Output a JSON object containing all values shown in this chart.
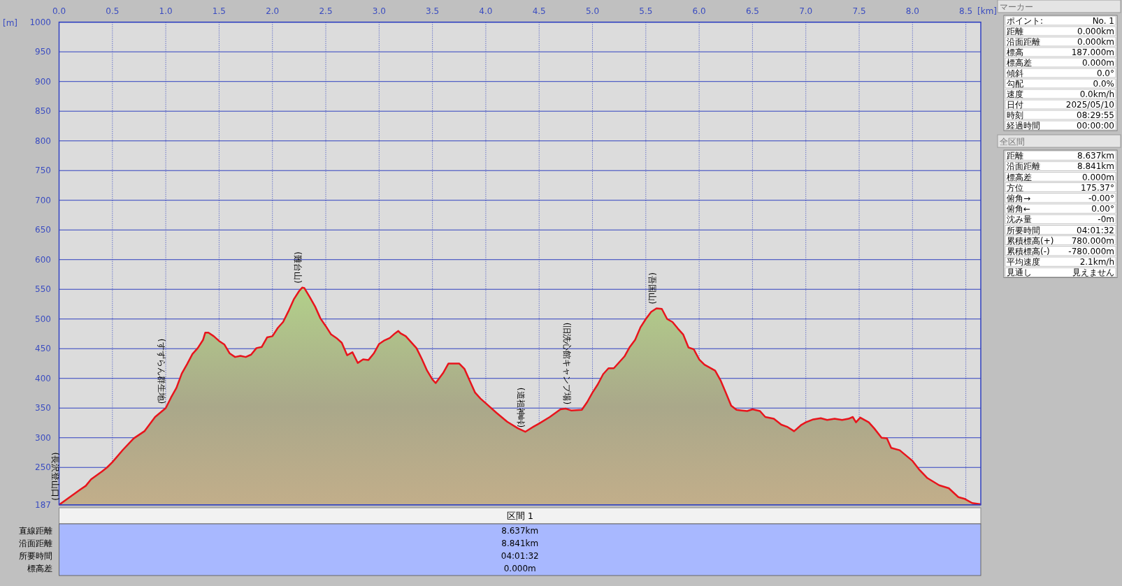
{
  "chart_data": [
    {
      "type": "area",
      "xlabel": "[km]",
      "ylabel": "[m]",
      "grid": true,
      "x": [
        0,
        0.1,
        0.2,
        0.25,
        0.3,
        0.4,
        0.45,
        0.5,
        0.6,
        0.7,
        0.8,
        0.85,
        0.9,
        1.0,
        1.05,
        1.1,
        1.15,
        1.2,
        1.25,
        1.3,
        1.35,
        1.37,
        1.4,
        1.45,
        1.5,
        1.55,
        1.6,
        1.65,
        1.7,
        1.75,
        1.8,
        1.85,
        1.9,
        1.95,
        2.0,
        2.05,
        2.1,
        2.15,
        2.2,
        2.25,
        2.28,
        2.3,
        2.35,
        2.4,
        2.45,
        2.5,
        2.55,
        2.6,
        2.65,
        2.7,
        2.75,
        2.8,
        2.85,
        2.9,
        2.95,
        3.0,
        3.05,
        3.1,
        3.15,
        3.18,
        3.2,
        3.25,
        3.3,
        3.35,
        3.4,
        3.45,
        3.5,
        3.53,
        3.6,
        3.65,
        3.7,
        3.75,
        3.8,
        3.85,
        3.9,
        3.95,
        4.0,
        4.1,
        4.2,
        4.3,
        4.37,
        4.45,
        4.5,
        4.6,
        4.7,
        4.75,
        4.8,
        4.9,
        4.95,
        5.0,
        5.05,
        5.1,
        5.15,
        5.2,
        5.25,
        5.3,
        5.35,
        5.4,
        5.45,
        5.5,
        5.55,
        5.6,
        5.65,
        5.7,
        5.75,
        5.8,
        5.85,
        5.9,
        5.95,
        6.0,
        6.05,
        6.1,
        6.15,
        6.2,
        6.25,
        6.3,
        6.35,
        6.4,
        6.45,
        6.5,
        6.57,
        6.62,
        6.7,
        6.77,
        6.83,
        6.89,
        6.96,
        7.0,
        7.07,
        7.14,
        7.2,
        7.27,
        7.34,
        7.4,
        7.44,
        7.47,
        7.51,
        7.59,
        7.64,
        7.71,
        7.76,
        7.8,
        7.88,
        8.0,
        8.06,
        8.14,
        8.25,
        8.34,
        8.43,
        8.49,
        8.56,
        8.64
      ],
      "series": [
        {
          "color": "#e8141c",
          "values": [
            187,
            200,
            213,
            219,
            230,
            243,
            250,
            259,
            280,
            299,
            311,
            323,
            335,
            350,
            368,
            384,
            408,
            424,
            441,
            451,
            465,
            477,
            477,
            471,
            463,
            457,
            442,
            436,
            438,
            436,
            440,
            451,
            453,
            469,
            471,
            485,
            495,
            513,
            533,
            547,
            553,
            552,
            537,
            521,
            501,
            488,
            474,
            468,
            460,
            439,
            444,
            426,
            432,
            431,
            442,
            458,
            464,
            468,
            476,
            480,
            476,
            471,
            461,
            451,
            433,
            413,
            398,
            392,
            409,
            425,
            425,
            425,
            416,
            396,
            376,
            366,
            358,
            342,
            327,
            316,
            310,
            319,
            324,
            335,
            348,
            349,
            346,
            347,
            360,
            376,
            390,
            407,
            417,
            417,
            427,
            437,
            453,
            465,
            486,
            500,
            512,
            518,
            517,
            500,
            495,
            484,
            474,
            452,
            449,
            432,
            423,
            418,
            413,
            397,
            376,
            354,
            347,
            346,
            345,
            348,
            345,
            335,
            332,
            322,
            318,
            311,
            322,
            326,
            331,
            333,
            330,
            332,
            330,
            332,
            335,
            326,
            334,
            326,
            316,
            300,
            299,
            283,
            279,
            261,
            247,
            232,
            220,
            215,
            200,
            197,
            190,
            188
          ]
        }
      ],
      "xlim": [
        0,
        8.64
      ],
      "xticks": [
        {
          "value": 0,
          "label": "0.0"
        },
        {
          "value": 0.5,
          "label": "0.5"
        },
        {
          "value": 1,
          "label": "1.0"
        },
        {
          "value": 1.5,
          "label": "1.5"
        },
        {
          "value": 2,
          "label": "2.0"
        },
        {
          "value": 2.5,
          "label": "2.5"
        },
        {
          "value": 3,
          "label": "3.0"
        },
        {
          "value": 3.5,
          "label": "3.5"
        },
        {
          "value": 4,
          "label": "4.0"
        },
        {
          "value": 4.5,
          "label": "4.5"
        },
        {
          "value": 5,
          "label": "5.0"
        },
        {
          "value": 5.5,
          "label": "5.5"
        },
        {
          "value": 6,
          "label": "6.0"
        },
        {
          "value": 6.5,
          "label": "6.5"
        },
        {
          "value": 7,
          "label": "7.0"
        },
        {
          "value": 7.5,
          "label": "7.5"
        },
        {
          "value": 8,
          "label": "8.0"
        },
        {
          "value": 8.5,
          "label": "8.5"
        }
      ],
      "ylim": [
        187,
        1000
      ],
      "yticks": [
        187,
        250,
        300,
        350,
        400,
        450,
        500,
        550,
        600,
        650,
        700,
        750,
        800,
        850,
        900,
        950,
        1000
      ],
      "annotations": [
        {
          "text": "(長沢登山口)",
          "x": 0,
          "y": 187
        },
        {
          "text": "(すずらん群生地)",
          "x": 1.0,
          "y": 350
        },
        {
          "text": "(難台山)",
          "x": 2.28,
          "y": 553
        },
        {
          "text": "(道祖神峠)",
          "x": 4.37,
          "y": 310
        },
        {
          "text": "(旧洗心館キャンプ場)",
          "x": 4.8,
          "y": 349
        },
        {
          "text": "(吾国山)",
          "x": 5.6,
          "y": 518
        }
      ]
    },
    {
      "type": "other",
      "title": "マーカー",
      "annotations": [
        "ポイント:",
        "No. 1",
        "距離",
        "0.000km",
        "沿面距離",
        "0.000km",
        "標高",
        "187.000m",
        "標高差",
        "0.000m",
        "傾斜",
        "0.0°",
        "勾配",
        "0.0%",
        "速度",
        "0.0km/h",
        "日付",
        "2025/05/10",
        "時刻",
        "08:29:55",
        "経過時間",
        "00:00:00"
      ]
    },
    {
      "type": "other",
      "title": "全区間",
      "annotations": [
        "距離",
        "8.637km",
        "沿面距離",
        "8.841km",
        "標高差",
        "0.000m",
        "方位",
        "175.37°",
        "俯角→",
        "-0.00°",
        "俯角←",
        "0.00°",
        "沈み量",
        "-0m",
        "所要時間",
        "04:01:32",
        "累積標高(+)",
        "780.000m",
        "累積標高(-)",
        "-780.000m",
        "平均速度",
        "2.1km/h",
        "見通し",
        "見えません"
      ]
    },
    {
      "type": "other",
      "title": "区間 1",
      "annotations": [
        "直線距離",
        "8.637km",
        "沿面距離",
        "8.841km",
        "所要時間",
        "04:01:32",
        "標高差",
        "0.000m"
      ]
    }
  ]
}
